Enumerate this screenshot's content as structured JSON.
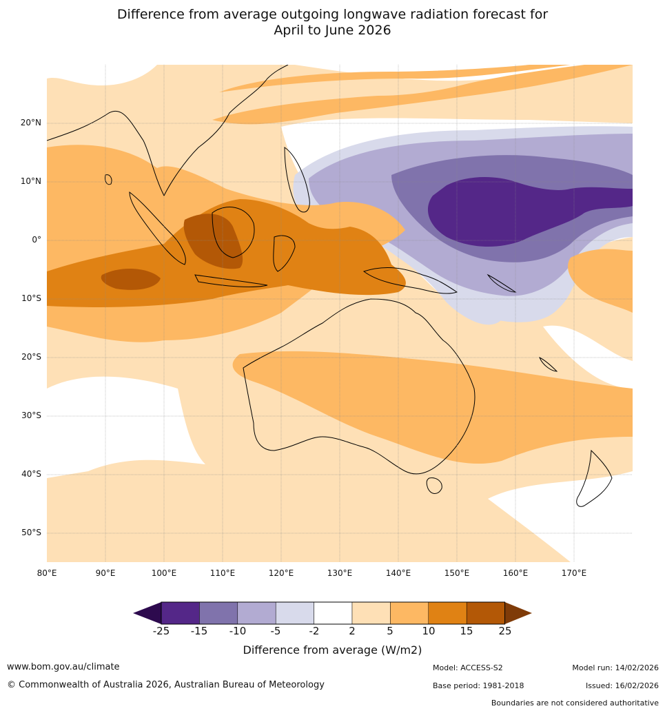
{
  "title_line1": "Difference from average outgoing longwave radiation forecast for",
  "title_line2": "April to June 2026",
  "lat_labels": [
    "20°N",
    "10°N",
    "0°",
    "10°S",
    "20°S",
    "30°S",
    "40°S",
    "50°S"
  ],
  "lon_labels": [
    "80°E",
    "90°E",
    "100°E",
    "110°E",
    "120°E",
    "130°E",
    "140°E",
    "150°E",
    "160°E",
    "170°E"
  ],
  "colorbar": {
    "ticks": [
      "-25",
      "-15",
      "-10",
      "-5",
      "-2",
      "2",
      "5",
      "10",
      "15",
      "25"
    ],
    "colors": [
      "#2d0a4e",
      "#542788",
      "#8073ac",
      "#b2abd2",
      "#d8daeb",
      "#ffffff",
      "#fee0b6",
      "#fdb863",
      "#e08214",
      "#b35806",
      "#7f3b08"
    ],
    "label": "Difference from average (W/m2)"
  },
  "footer": {
    "url": "www.bom.gov.au/climate",
    "copyright": "© Commonwealth of Australia 2026, Australian Bureau of Meteorology",
    "model": "Model: ACCESS-S2",
    "base_period": "Base period: 1981-2018",
    "model_run": "Model run: 14/02/2026",
    "issued": "Issued: 16/02/2026",
    "disclaimer": "Boundaries are not considered authoritative"
  }
}
